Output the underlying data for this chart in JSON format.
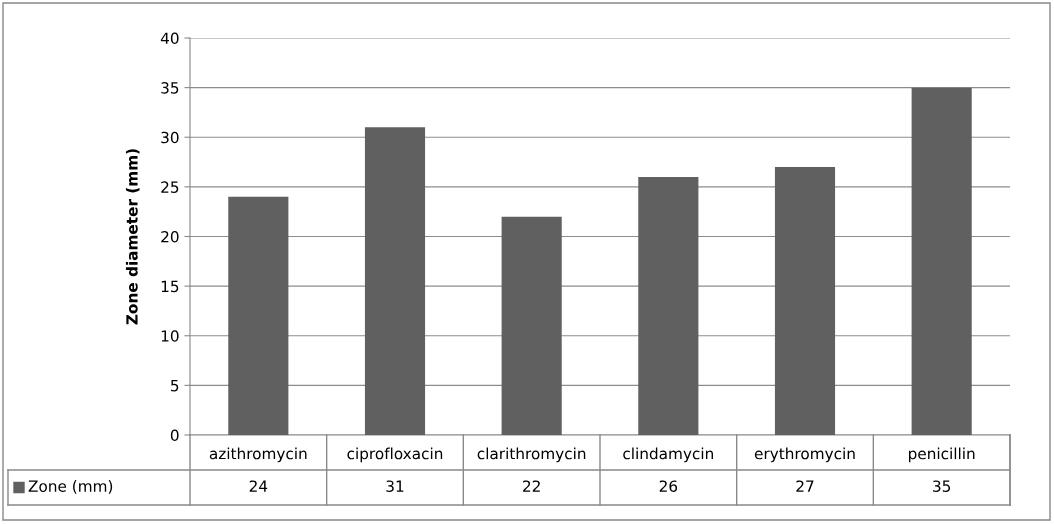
{
  "chart_data": {
    "type": "bar",
    "ylabel": "Zone diameter (mm)",
    "categories": [
      "azithromycin",
      "ciprofloxacin",
      "clarithromycin",
      "clindamycin",
      "erythromycin",
      "penicillin"
    ],
    "series": [
      {
        "name": "Zone (mm)",
        "color": "#606060",
        "values": [
          24,
          31,
          22,
          26,
          27,
          35
        ]
      }
    ],
    "ylim": [
      0,
      40
    ],
    "yticks": [
      0,
      5,
      10,
      15,
      20,
      25,
      30,
      35,
      40
    ],
    "grid": "y",
    "data_labels": true,
    "legend": "bottom"
  }
}
